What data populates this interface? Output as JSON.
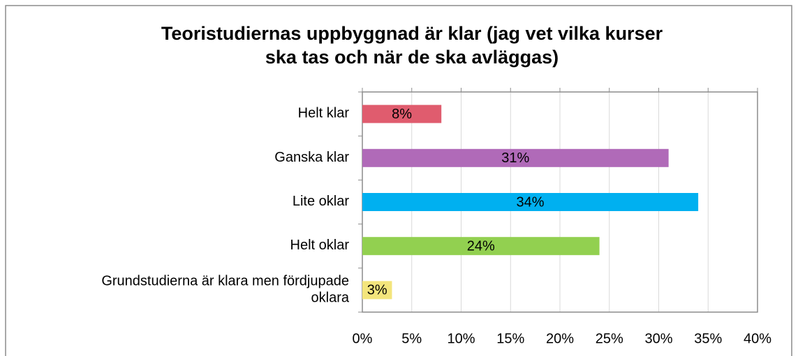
{
  "chart_data": {
    "type": "bar",
    "orientation": "horizontal",
    "title": "Teoristudiernas uppbyggnad är klar (jag vet vilka kurser ska tas och när de ska avläggas)",
    "categories": [
      "Helt klar",
      "Ganska klar",
      "Lite oklar",
      "Helt oklar",
      "Grundstudierna är klara men fördjupade oklara"
    ],
    "values": [
      8,
      31,
      34,
      24,
      3
    ],
    "value_labels": [
      "8%",
      "31%",
      "34%",
      "24%",
      "3%"
    ],
    "colors": [
      "#e05c6e",
      "#b06ab8",
      "#00b0f0",
      "#92d050",
      "#f3e57c"
    ],
    "xlim": [
      0,
      40
    ],
    "xticks": [
      {
        "value": 0,
        "label": "0%"
      },
      {
        "value": 5,
        "label": "5%"
      },
      {
        "value": 10,
        "label": "10%"
      },
      {
        "value": 15,
        "label": "15%"
      },
      {
        "value": 20,
        "label": "20%"
      },
      {
        "value": 25,
        "label": "25%"
      },
      {
        "value": 30,
        "label": "30%"
      },
      {
        "value": 35,
        "label": "35%"
      },
      {
        "value": 40,
        "label": "40%"
      }
    ],
    "grid": true
  }
}
